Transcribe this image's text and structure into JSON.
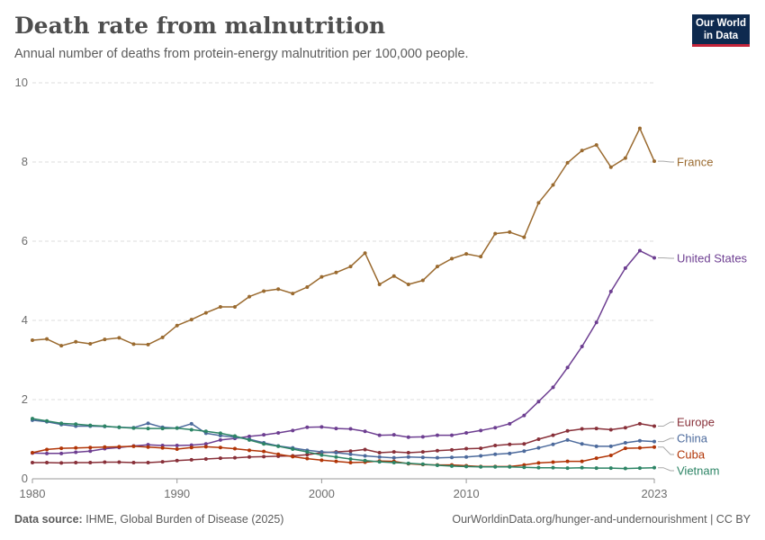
{
  "header": {
    "title": "Death rate from malnutrition",
    "subtitle": "Annual number of deaths from protein-energy malnutrition per 100,000 people."
  },
  "logo": {
    "line1": "Our World",
    "line2": "in Data"
  },
  "footer": {
    "source_label": "Data source:",
    "source_text": "IHME, Global Burden of Disease (2025)",
    "url_text": "OurWorldinData.org/hunger-and-undernourishment | CC BY"
  },
  "chart_data": {
    "type": "line",
    "xlim": [
      1980,
      2023
    ],
    "ylim": [
      0,
      10
    ],
    "yticks": [
      0,
      2,
      4,
      6,
      8,
      10
    ],
    "xticks": [
      1980,
      1990,
      2000,
      2010,
      2023
    ],
    "grid": true,
    "legend_placement": "right, end-of-line labels",
    "x": [
      1980,
      1981,
      1982,
      1983,
      1984,
      1985,
      1986,
      1987,
      1988,
      1989,
      1990,
      1991,
      1992,
      1993,
      1994,
      1995,
      1996,
      1997,
      1998,
      1999,
      2000,
      2001,
      2002,
      2003,
      2004,
      2005,
      2006,
      2007,
      2008,
      2009,
      2010,
      2011,
      2012,
      2013,
      2014,
      2015,
      2016,
      2017,
      2018,
      2019,
      2020,
      2021,
      2022,
      2023
    ],
    "series": [
      {
        "name": "France",
        "color": "#9a6a2f",
        "values": [
          3.5,
          3.53,
          3.36,
          3.46,
          3.41,
          3.52,
          3.56,
          3.4,
          3.39,
          3.57,
          3.87,
          4.02,
          4.19,
          4.34,
          4.34,
          4.6,
          4.74,
          4.79,
          4.68,
          4.84,
          5.1,
          5.21,
          5.36,
          5.7,
          4.91,
          5.12,
          4.91,
          5.01,
          5.36,
          5.56,
          5.68,
          5.61,
          6.19,
          6.23,
          6.1,
          6.97,
          7.42,
          7.98,
          8.29,
          8.43,
          7.87,
          8.1,
          8.85,
          8.02
        ]
      },
      {
        "name": "United States",
        "color": "#6d3e91",
        "values": [
          0.65,
          0.64,
          0.64,
          0.67,
          0.7,
          0.76,
          0.79,
          0.83,
          0.86,
          0.84,
          0.84,
          0.85,
          0.88,
          0.98,
          1.02,
          1.07,
          1.11,
          1.16,
          1.22,
          1.3,
          1.31,
          1.27,
          1.26,
          1.2,
          1.1,
          1.11,
          1.05,
          1.06,
          1.1,
          1.1,
          1.16,
          1.22,
          1.29,
          1.39,
          1.6,
          1.95,
          2.31,
          2.81,
          3.34,
          3.95,
          4.73,
          5.32,
          5.76,
          5.58
        ]
      },
      {
        "name": "Europe",
        "color": "#883039",
        "values": [
          0.41,
          0.41,
          0.4,
          0.41,
          0.41,
          0.42,
          0.42,
          0.41,
          0.41,
          0.43,
          0.46,
          0.48,
          0.5,
          0.52,
          0.53,
          0.55,
          0.56,
          0.57,
          0.58,
          0.61,
          0.66,
          0.68,
          0.7,
          0.74,
          0.66,
          0.68,
          0.66,
          0.68,
          0.71,
          0.73,
          0.76,
          0.77,
          0.84,
          0.87,
          0.88,
          1.0,
          1.1,
          1.21,
          1.26,
          1.27,
          1.24,
          1.29,
          1.39,
          1.33
        ]
      },
      {
        "name": "China",
        "color": "#4c6a9c",
        "values": [
          1.48,
          1.44,
          1.37,
          1.33,
          1.33,
          1.32,
          1.3,
          1.29,
          1.4,
          1.3,
          1.28,
          1.39,
          1.15,
          1.09,
          1.05,
          1.0,
          0.91,
          0.83,
          0.78,
          0.72,
          0.68,
          0.66,
          0.62,
          0.58,
          0.55,
          0.53,
          0.55,
          0.54,
          0.53,
          0.54,
          0.55,
          0.58,
          0.62,
          0.64,
          0.7,
          0.78,
          0.87,
          0.98,
          0.88,
          0.82,
          0.82,
          0.91,
          0.96,
          0.94
        ]
      },
      {
        "name": "Cuba",
        "color": "#b13507",
        "values": [
          0.66,
          0.74,
          0.77,
          0.78,
          0.79,
          0.8,
          0.81,
          0.82,
          0.8,
          0.78,
          0.75,
          0.79,
          0.81,
          0.79,
          0.76,
          0.72,
          0.69,
          0.62,
          0.56,
          0.51,
          0.47,
          0.44,
          0.41,
          0.42,
          0.45,
          0.44,
          0.38,
          0.36,
          0.35,
          0.35,
          0.33,
          0.31,
          0.31,
          0.31,
          0.35,
          0.4,
          0.42,
          0.44,
          0.44,
          0.52,
          0.59,
          0.77,
          0.78,
          0.8
        ]
      },
      {
        "name": "Vietnam",
        "color": "#2c8465",
        "values": [
          1.52,
          1.46,
          1.4,
          1.38,
          1.35,
          1.33,
          1.3,
          1.28,
          1.27,
          1.27,
          1.28,
          1.24,
          1.2,
          1.15,
          1.08,
          0.98,
          0.88,
          0.82,
          0.75,
          0.68,
          0.6,
          0.55,
          0.5,
          0.46,
          0.43,
          0.41,
          0.39,
          0.37,
          0.34,
          0.32,
          0.31,
          0.3,
          0.3,
          0.3,
          0.29,
          0.28,
          0.28,
          0.27,
          0.28,
          0.27,
          0.27,
          0.26,
          0.27,
          0.28
        ]
      }
    ],
    "end_labels": [
      "France",
      "United States",
      "Europe",
      "China",
      "Cuba",
      "Vietnam"
    ]
  }
}
